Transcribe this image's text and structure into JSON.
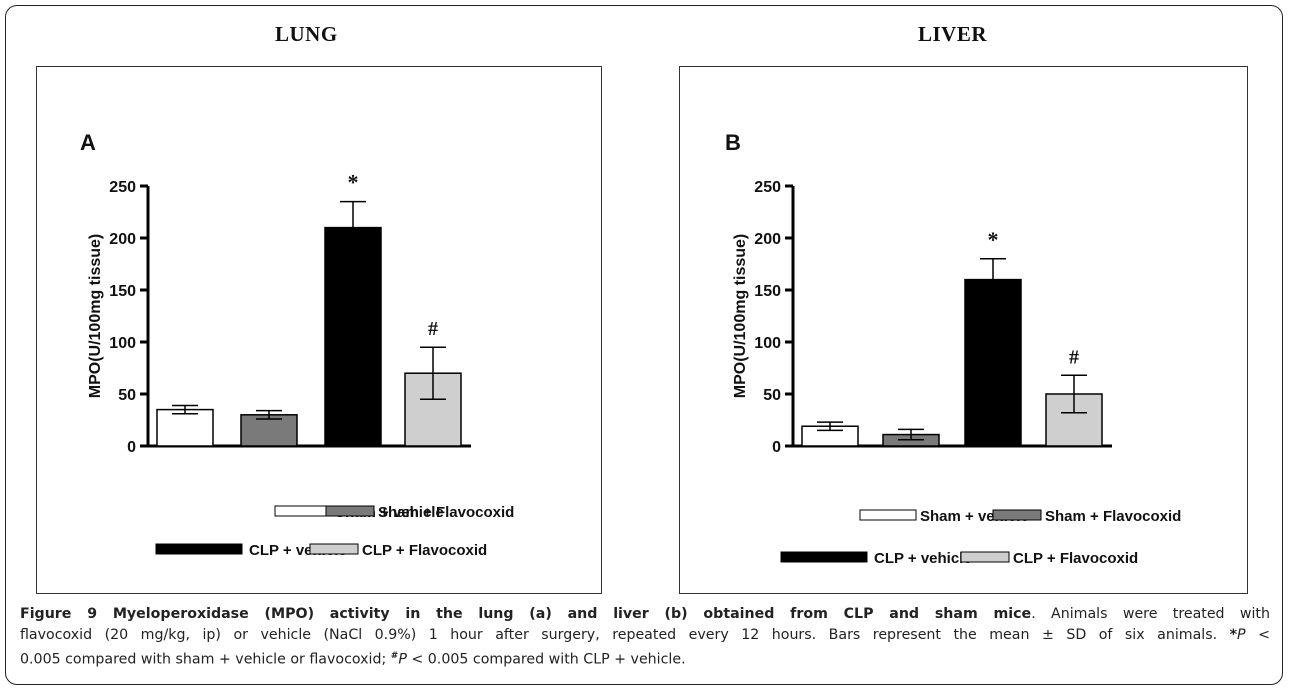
{
  "figure": {
    "caption_title": "Figure 9 Myeloperoxidase (MPO) activity in the lung (a) and liver (b) obtained from CLP and sham mice",
    "caption_line1_rest": ". Animals were treated with",
    "caption_line2": "flavocoxid (20 mg/kg, ip) or vehicle (NaCl 0.9%) 1 hour after surgery, repeated every 12 hours. Bars represent the mean ± SD of six animals.",
    "caption_star": "*",
    "caption_p1": "P",
    "caption_line2_tail": " <",
    "caption_line3_a": "0.005 compared with sham + vehicle or flavocoxid;",
    "caption_hash": "#",
    "caption_p2": "P",
    "caption_line3_b": " < 0.005 compared with CLP + vehicle."
  },
  "colors": {
    "sham_vehicle": "#ffffff",
    "sham_flavocoxid": "#7a7a7a",
    "clp_vehicle": "#000000",
    "clp_flavocoxid": "#cfcfcf"
  },
  "chart_data": [
    {
      "type": "bar",
      "panel_title": "LUNG",
      "panel_label": "A",
      "ylabel": "MPO(U/100mg tissue)",
      "ylim": [
        0,
        250
      ],
      "yticks": [
        0,
        50,
        100,
        150,
        200,
        250
      ],
      "categories": [
        "Sham + vehicle",
        "Sham + Flavocoxid",
        "CLP + vehicle",
        "CLP + Flavocoxid"
      ],
      "values": [
        35,
        30,
        210,
        70
      ],
      "errors": [
        4,
        4,
        25,
        25
      ],
      "annotations": [
        "",
        "",
        "*",
        "#"
      ],
      "legend": [
        "Sham + vehicle",
        "Sham + Flavocoxid",
        "CLP + vehicle",
        "CLP + Flavocoxid"
      ],
      "legend_placement": "bottom"
    },
    {
      "type": "bar",
      "panel_title": "LIVER",
      "panel_label": "B",
      "ylabel": "MPO(U/100mg tissue)",
      "ylim": [
        0,
        250
      ],
      "yticks": [
        0,
        50,
        100,
        150,
        200,
        250
      ],
      "categories": [
        "Sham + vehicle",
        "Sham + Flavocoxid",
        "CLP + vehicle",
        "CLP + Flavocoxid"
      ],
      "values": [
        19,
        11,
        160,
        50
      ],
      "errors": [
        4,
        5,
        20,
        18
      ],
      "annotations": [
        "",
        "",
        "*",
        "#"
      ],
      "legend": [
        "Sham + vehicle",
        "Sham + Flavocoxid",
        "CLP + vehicle",
        "CLP + Flavocoxid"
      ],
      "legend_placement": "bottom"
    }
  ]
}
